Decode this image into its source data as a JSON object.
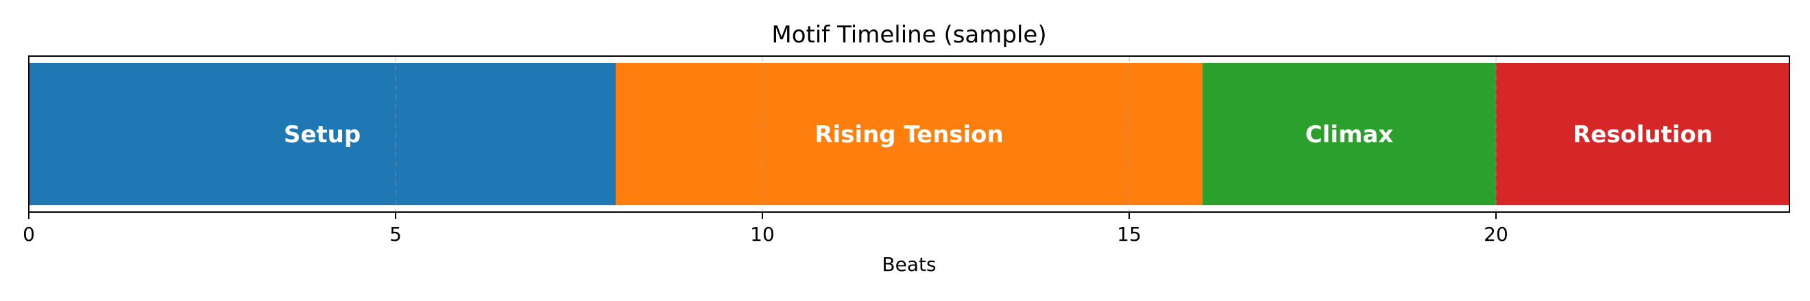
{
  "chart_data": {
    "type": "bar",
    "orientation": "horizontal-timeline",
    "title": "Motif Timeline (sample)",
    "xlabel": "Beats",
    "ylabel": "",
    "xlim": [
      0,
      24
    ],
    "xticks": [
      0,
      5,
      10,
      15,
      20
    ],
    "grid": "vertical-dashed",
    "segments": [
      {
        "label": "Setup",
        "start": 0,
        "end": 8,
        "color": "#1f77b4"
      },
      {
        "label": "Rising Tension",
        "start": 8,
        "end": 16,
        "color": "#ff7f0e"
      },
      {
        "label": "Climax",
        "start": 16,
        "end": 20,
        "color": "#2ca02c"
      },
      {
        "label": "Resolution",
        "start": 20,
        "end": 24,
        "color": "#d62728"
      }
    ]
  }
}
